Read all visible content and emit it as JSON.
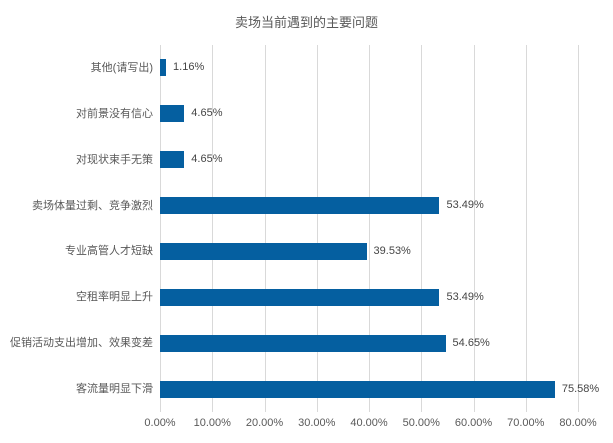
{
  "chart_data": {
    "type": "bar",
    "orientation": "horizontal",
    "title": "卖场当前遇到的主要问题",
    "categories": [
      "其他(请写出)",
      "对前景没有信心",
      "对现状束手无策",
      "卖场体量过剩、竞争激烈",
      "专业高管人才短缺",
      "空租率明显上升",
      "促销活动支出增加、效果变差",
      "客流量明显下滑"
    ],
    "values": [
      1.16,
      4.65,
      4.65,
      53.49,
      39.53,
      53.49,
      54.65,
      75.58
    ],
    "value_labels": [
      "1.16%",
      "4.65%",
      "4.65%",
      "53.49%",
      "39.53%",
      "53.49%",
      "54.65%",
      "75.58%"
    ],
    "x_ticks": [
      "0.00%",
      "10.00%",
      "20.00%",
      "30.00%",
      "40.00%",
      "50.00%",
      "60.00%",
      "70.00%",
      "80.00%"
    ],
    "xlim": [
      0,
      80
    ],
    "grid": true,
    "legend": "none",
    "colors": {
      "bar": "#055fa0",
      "gridline": "#d9d9d9",
      "title_text": "#595959",
      "category_text": "#595959",
      "value_text": "#454545",
      "tick_text": "#595959",
      "background": "#ffffff"
    }
  }
}
